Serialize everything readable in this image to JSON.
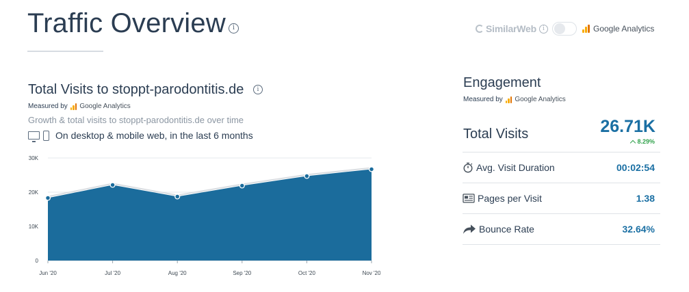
{
  "header": {
    "title": "Traffic Overview",
    "info_glyph": "i"
  },
  "source_toggle": {
    "similarweb_label": "SimilarWeb",
    "google_analytics_label": "Google Analytics",
    "info_glyph": "i",
    "selected": "Google Analytics"
  },
  "visits_card": {
    "title": "Total Visits to stoppt-parodontitis.de",
    "info_glyph": "i",
    "measured_by_prefix": "Measured by",
    "measured_by_source": "Google Analytics",
    "subtitle": "Growth & total visits to stoppt-parodontitis.de over time",
    "scope_text": "On desktop & mobile web, in the last 6 months"
  },
  "engagement": {
    "title": "Engagement",
    "measured_by_prefix": "Measured by",
    "measured_by_source": "Google Analytics",
    "total_visits_label": "Total Visits",
    "total_visits_value": "26.71K",
    "total_visits_change": "8.29%",
    "metrics": [
      {
        "label": "Avg. Visit Duration",
        "value": "00:02:54",
        "icon": "stopwatch-icon"
      },
      {
        "label": "Pages per Visit",
        "value": "1.38",
        "icon": "pages-icon"
      },
      {
        "label": "Bounce Rate",
        "value": "32.64%",
        "icon": "bounce-arrow-icon"
      }
    ]
  },
  "colors": {
    "accent": "#1a6fa3",
    "area_fill": "#1b6c9c",
    "positive": "#31a24c"
  },
  "chart_data": {
    "type": "area",
    "categories": [
      "Jun '20",
      "Jul '20",
      "Aug '20",
      "Sep '20",
      "Oct '20",
      "Nov '20"
    ],
    "values": [
      18300,
      22100,
      18700,
      21900,
      24700,
      26710
    ],
    "y_ticks": [
      "0",
      "10K",
      "20K",
      "30K"
    ],
    "ylim": [
      0,
      30000
    ],
    "grid": true,
    "title": "",
    "xlabel": "",
    "ylabel": ""
  }
}
